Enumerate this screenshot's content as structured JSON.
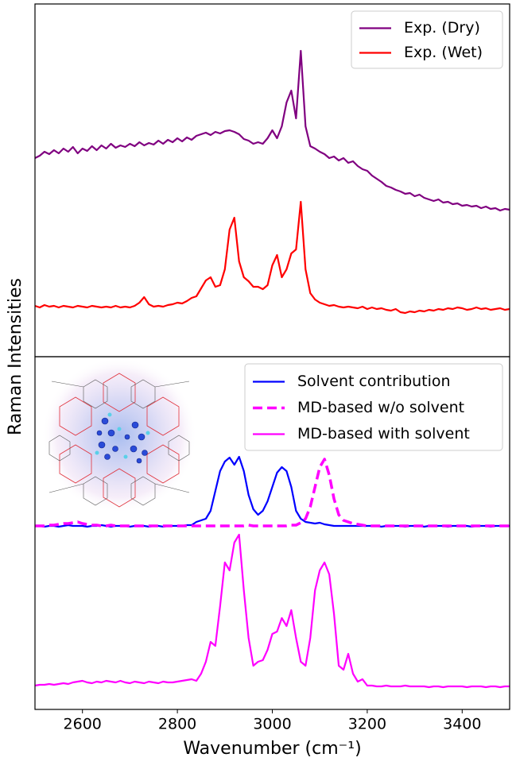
{
  "chart_data": [
    {
      "type": "line",
      "ylabel": "Raman Intensities",
      "legend": "upper right",
      "xlim": [
        2500,
        3500
      ],
      "ylim": [
        0,
        444
      ],
      "x": [
        2500,
        2510,
        2520,
        2530,
        2540,
        2550,
        2560,
        2570,
        2580,
        2590,
        2600,
        2610,
        2620,
        2630,
        2640,
        2650,
        2660,
        2670,
        2680,
        2690,
        2700,
        2710,
        2720,
        2730,
        2740,
        2750,
        2760,
        2770,
        2780,
        2790,
        2800,
        2810,
        2820,
        2830,
        2840,
        2850,
        2860,
        2870,
        2880,
        2890,
        2900,
        2910,
        2920,
        2930,
        2940,
        2950,
        2960,
        2970,
        2980,
        2990,
        3000,
        3010,
        3020,
        3030,
        3040,
        3050,
        3060,
        3070,
        3080,
        3090,
        3100,
        3110,
        3120,
        3130,
        3140,
        3150,
        3160,
        3170,
        3180,
        3190,
        3200,
        3210,
        3220,
        3230,
        3240,
        3250,
        3260,
        3270,
        3280,
        3290,
        3300,
        3310,
        3320,
        3330,
        3340,
        3350,
        3360,
        3370,
        3380,
        3390,
        3400,
        3410,
        3420,
        3430,
        3440,
        3450,
        3460,
        3470,
        3480,
        3490,
        3500
      ],
      "series": [
        {
          "name": "Exp. (Dry)",
          "color": "#800080",
          "linestyle": "solid",
          "values": [
            250,
            253,
            258,
            255,
            260,
            256,
            262,
            258,
            264,
            256,
            262,
            259,
            265,
            260,
            266,
            262,
            268,
            263,
            266,
            264,
            268,
            265,
            270,
            266,
            269,
            267,
            272,
            268,
            273,
            270,
            275,
            271,
            276,
            273,
            278,
            280,
            282,
            279,
            283,
            281,
            284,
            285,
            283,
            280,
            274,
            272,
            268,
            270,
            268,
            275,
            285,
            275,
            290,
            320,
            335,
            300,
            385,
            290,
            265,
            262,
            258,
            255,
            250,
            252,
            247,
            250,
            244,
            246,
            240,
            236,
            234,
            228,
            224,
            220,
            215,
            213,
            210,
            208,
            205,
            206,
            202,
            204,
            200,
            198,
            196,
            198,
            194,
            195,
            192,
            193,
            190,
            191,
            189,
            190,
            187,
            189,
            186,
            187,
            184,
            186,
            185
          ]
        },
        {
          "name": "Exp. (Wet)",
          "color": "#ff0000",
          "linestyle": "solid",
          "values": [
            64,
            62,
            65,
            63,
            64,
            62,
            64,
            63,
            62,
            64,
            63,
            62,
            64,
            63,
            62,
            63,
            62,
            64,
            62,
            63,
            62,
            64,
            68,
            75,
            66,
            63,
            64,
            63,
            65,
            66,
            68,
            67,
            70,
            74,
            76,
            86,
            96,
            100,
            88,
            90,
            110,
            160,
            175,
            120,
            100,
            95,
            88,
            88,
            85,
            90,
            115,
            128,
            100,
            110,
            130,
            135,
            195,
            110,
            80,
            72,
            68,
            66,
            64,
            65,
            63,
            62,
            63,
            62,
            61,
            63,
            60,
            62,
            60,
            61,
            59,
            58,
            60,
            56,
            55,
            57,
            56,
            58,
            57,
            59,
            58,
            60,
            59,
            61,
            60,
            62,
            61,
            59,
            60,
            62,
            60,
            61,
            59,
            60,
            61,
            59,
            60
          ]
        }
      ]
    },
    {
      "type": "line",
      "xlabel": "Wavenumber (cm⁻¹)",
      "legend": "upper right",
      "xlim": [
        2500,
        3500
      ],
      "ylim": [
        0,
        444
      ],
      "xticks": [
        2600,
        2800,
        3000,
        3200,
        3400
      ],
      "x": [
        2500,
        2510,
        2520,
        2530,
        2540,
        2550,
        2560,
        2570,
        2580,
        2590,
        2600,
        2610,
        2620,
        2630,
        2640,
        2650,
        2660,
        2670,
        2680,
        2690,
        2700,
        2710,
        2720,
        2730,
        2740,
        2750,
        2760,
        2770,
        2780,
        2790,
        2800,
        2810,
        2820,
        2830,
        2840,
        2850,
        2860,
        2870,
        2880,
        2890,
        2900,
        2910,
        2920,
        2930,
        2940,
        2950,
        2960,
        2970,
        2980,
        2990,
        3000,
        3010,
        3020,
        3030,
        3040,
        3050,
        3060,
        3070,
        3080,
        3090,
        3100,
        3110,
        3120,
        3130,
        3140,
        3150,
        3160,
        3170,
        3180,
        3190,
        3200,
        3210,
        3220,
        3230,
        3240,
        3250,
        3260,
        3270,
        3280,
        3290,
        3300,
        3310,
        3320,
        3330,
        3340,
        3350,
        3360,
        3370,
        3380,
        3390,
        3400,
        3410,
        3420,
        3430,
        3440,
        3450,
        3460,
        3470,
        3480,
        3490,
        3500
      ],
      "series": [
        {
          "name": "Solvent contribution",
          "color": "#0000ff",
          "linestyle": "solid",
          "values": [
            231,
            231,
            230,
            231,
            231,
            230,
            231,
            232,
            231,
            231,
            231,
            230,
            231,
            231,
            232,
            231,
            230,
            231,
            231,
            231,
            230,
            231,
            231,
            231,
            230,
            231,
            231,
            230,
            231,
            231,
            231,
            231,
            232,
            232,
            236,
            238,
            240,
            250,
            275,
            300,
            312,
            317,
            308,
            318,
            300,
            270,
            252,
            245,
            250,
            262,
            280,
            298,
            305,
            300,
            280,
            250,
            240,
            236,
            235,
            234,
            235,
            233,
            232,
            231,
            231,
            231,
            231,
            231,
            231,
            231,
            231,
            231,
            231,
            230,
            231,
            231,
            231,
            231,
            230,
            231,
            231,
            231,
            230,
            231,
            231,
            231,
            231,
            230,
            231,
            231,
            231,
            231,
            230,
            231,
            231,
            231,
            230,
            231,
            231,
            231,
            231
          ]
        },
        {
          "name": "MD-based w/o solvent",
          "color": "#ff00ff",
          "linestyle": "dashed",
          "values": [
            231,
            231,
            231,
            232,
            232,
            233,
            234,
            234,
            235,
            236,
            234,
            233,
            232,
            232,
            231,
            231,
            232,
            231,
            231,
            231,
            231,
            231,
            231,
            231,
            231,
            231,
            231,
            231,
            231,
            231,
            231,
            231,
            231,
            231,
            231,
            231,
            231,
            231,
            231,
            231,
            231,
            231,
            231,
            231,
            231,
            232,
            231,
            231,
            231,
            231,
            231,
            231,
            231,
            231,
            232,
            232,
            235,
            240,
            255,
            280,
            305,
            315,
            295,
            265,
            245,
            238,
            236,
            234,
            233,
            232,
            231,
            231,
            231,
            231,
            231,
            231,
            231,
            231,
            231,
            231,
            231,
            231,
            231,
            231,
            231,
            231,
            231,
            231,
            231,
            231,
            231,
            231,
            231,
            231,
            231,
            231,
            231,
            231,
            231,
            231,
            231
          ]
        },
        {
          "name": "MD-based with solvent",
          "color": "#ff00ff",
          "linestyle": "solid",
          "values": [
            30,
            31,
            31,
            32,
            31,
            32,
            33,
            32,
            34,
            35,
            36,
            34,
            33,
            35,
            34,
            36,
            35,
            34,
            36,
            34,
            33,
            35,
            34,
            33,
            35,
            34,
            33,
            35,
            34,
            34,
            35,
            36,
            37,
            38,
            36,
            45,
            60,
            85,
            80,
            130,
            185,
            175,
            210,
            220,
            150,
            90,
            55,
            60,
            62,
            75,
            95,
            98,
            115,
            105,
            125,
            90,
            60,
            55,
            90,
            150,
            175,
            185,
            170,
            120,
            55,
            50,
            70,
            45,
            35,
            38,
            30,
            30,
            29,
            29,
            30,
            29,
            29,
            29,
            30,
            29,
            29,
            29,
            29,
            28,
            29,
            29,
            28,
            29,
            29,
            29,
            29,
            28,
            29,
            29,
            29,
            28,
            29,
            29,
            28,
            29,
            29
          ]
        }
      ]
    }
  ]
}
